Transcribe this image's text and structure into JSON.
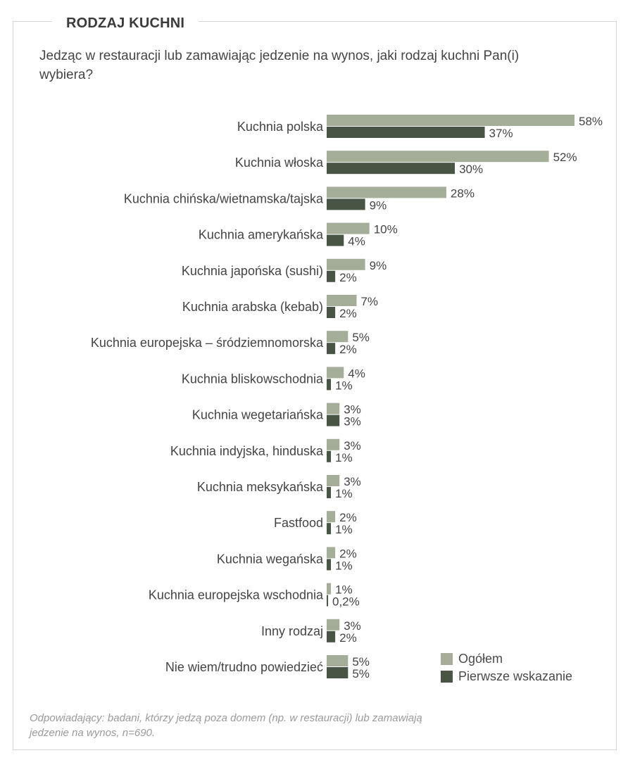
{
  "header": {
    "title": "RODZAJ KUCHNI",
    "question": "Jedząc w restauracji lub zamawiając jedzenie na wynos, jaki rodzaj kuchni Pan(i) wybiera?"
  },
  "colors": {
    "ogolem": "#a3ad98",
    "pierwsze": "#485545"
  },
  "legend": {
    "ogolem": "Ogółem",
    "pierwsze": "Pierwsze wskazanie"
  },
  "footnote": "Odpowiadający: badani, którzy jedzą poza domem (np. w restauracji) lub zamawiają jedzenie na wynos, n=690.",
  "chart_data": {
    "type": "bar",
    "orientation": "horizontal",
    "categories": [
      "Kuchnia polska",
      "Kuchnia włoska",
      "Kuchnia chińska/wietnamska/tajska",
      "Kuchnia amerykańska",
      "Kuchnia japońska (sushi)",
      "Kuchnia arabska (kebab)",
      "Kuchnia europejska – śródziemnomorska",
      "Kuchnia bliskowschodnia",
      "Kuchnia wegetariańska",
      "Kuchnia indyjska, hinduska",
      "Kuchnia meksykańska",
      "Fastfood",
      "Kuchnia wegańska",
      "Kuchnia europejska wschodnia",
      "Inny rodzaj",
      "Nie wiem/trudno powiedzieć"
    ],
    "series": [
      {
        "name": "Ogółem",
        "values": [
          58,
          52,
          28,
          10,
          9,
          7,
          5,
          4,
          3,
          3,
          3,
          2,
          2,
          1,
          3,
          5
        ],
        "labels": [
          "58%",
          "52%",
          "28%",
          "10%",
          "9%",
          "7%",
          "5%",
          "4%",
          "3%",
          "3%",
          "3%",
          "2%",
          "2%",
          "1%",
          "3%",
          "5%"
        ]
      },
      {
        "name": "Pierwsze wskazanie",
        "values": [
          37,
          30,
          9,
          4,
          2,
          2,
          2,
          1,
          3,
          1,
          1,
          1,
          1,
          0.2,
          2,
          5
        ],
        "labels": [
          "37%",
          "30%",
          "9%",
          "4%",
          "2%",
          "2%",
          "2%",
          "1%",
          "3%",
          "1%",
          "1%",
          "1%",
          "1%",
          "0,2%",
          "2%",
          "5%"
        ]
      }
    ],
    "xlim": [
      0,
      60
    ],
    "grid": false,
    "legend_position": "bottom-right"
  }
}
